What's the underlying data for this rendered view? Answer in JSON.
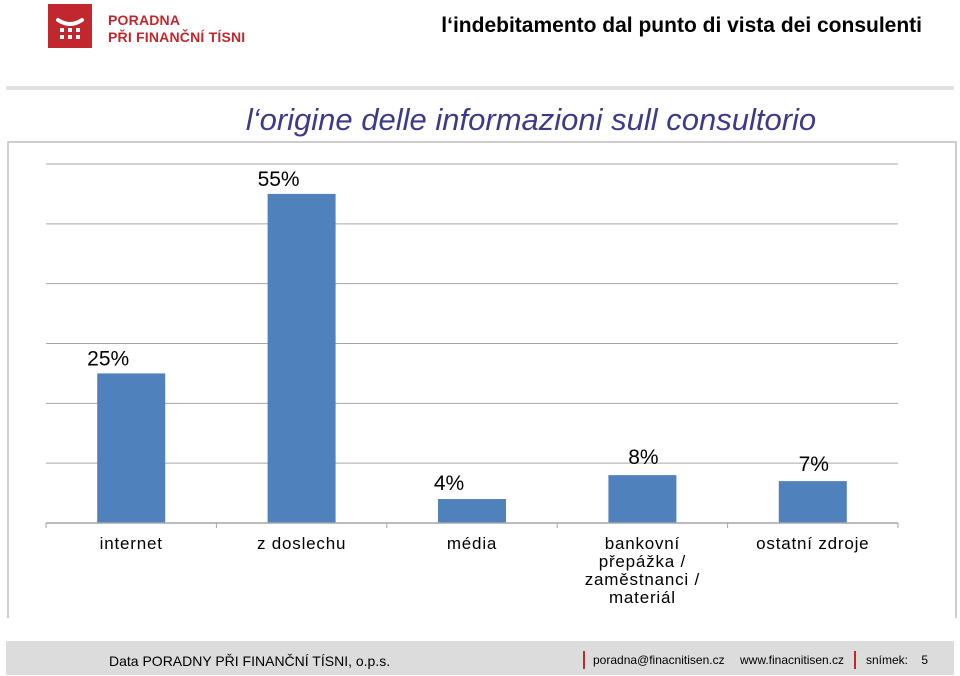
{
  "header": {
    "logo_line1": "PORADNA",
    "logo_line2": "PŘI FINANČNÍ TÍSNI",
    "title": "l‘indebitamento dal punto di vista dei consulenti"
  },
  "colors": {
    "brand_red": "#c0282e",
    "title_blue": "#3e3a8a",
    "bar": "#4f81bd"
  },
  "chart_data": {
    "type": "bar",
    "title": "l‘origine delle informazioni sull consultorio",
    "categories": [
      [
        "internet"
      ],
      [
        "z doslechu"
      ],
      [
        "média"
      ],
      [
        "bankovní",
        "přepážka /",
        "zaměstnanci /",
        "materiál"
      ],
      [
        "ostatní zdroje"
      ]
    ],
    "values": [
      25,
      55,
      4,
      8,
      7
    ],
    "data_labels": [
      "25%",
      "55%",
      "4%",
      "8%",
      "7%"
    ],
    "ylim": [
      0,
      60
    ],
    "grid": true,
    "legend": "none"
  },
  "footer": {
    "source": "Data PORADNY PŘI FINANČNÍ TÍSNI, o.p.s.",
    "email": "poradna@finacnitisen.cz",
    "web": "www.finacnitisen.cz",
    "slide_label": "snímek:",
    "slide_number": "5"
  }
}
